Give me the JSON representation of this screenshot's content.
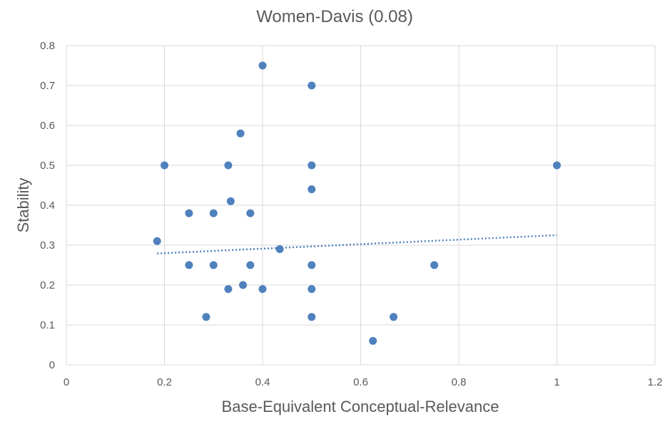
{
  "chart_data": {
    "type": "scatter",
    "title": "Women-Davis (0.08)",
    "xlabel": "Base-Equivalent Conceptual-Relevance",
    "ylabel": "Stability",
    "xlim": [
      0,
      1.2
    ],
    "ylim": [
      0,
      0.8
    ],
    "x_ticks": [
      "0",
      "0.2",
      "0.4",
      "0.6",
      "0.8",
      "1",
      "1.2"
    ],
    "y_ticks": [
      "0",
      "0.1",
      "0.2",
      "0.3",
      "0.4",
      "0.5",
      "0.6",
      "0.7",
      "0.8"
    ],
    "grid": true,
    "legend": "none",
    "marker_color": "#4f81bd",
    "trendline_color": "#4f81bd",
    "points": [
      {
        "x": 0.185,
        "y": 0.31
      },
      {
        "x": 0.2,
        "y": 0.5
      },
      {
        "x": 0.25,
        "y": 0.38
      },
      {
        "x": 0.25,
        "y": 0.25
      },
      {
        "x": 0.285,
        "y": 0.12
      },
      {
        "x": 0.3,
        "y": 0.38
      },
      {
        "x": 0.3,
        "y": 0.25
      },
      {
        "x": 0.33,
        "y": 0.5
      },
      {
        "x": 0.33,
        "y": 0.19
      },
      {
        "x": 0.335,
        "y": 0.41
      },
      {
        "x": 0.355,
        "y": 0.58
      },
      {
        "x": 0.36,
        "y": 0.2
      },
      {
        "x": 0.375,
        "y": 0.38
      },
      {
        "x": 0.375,
        "y": 0.25
      },
      {
        "x": 0.4,
        "y": 0.75
      },
      {
        "x": 0.4,
        "y": 0.19
      },
      {
        "x": 0.435,
        "y": 0.29
      },
      {
        "x": 0.5,
        "y": 0.7
      },
      {
        "x": 0.5,
        "y": 0.5
      },
      {
        "x": 0.5,
        "y": 0.44
      },
      {
        "x": 0.5,
        "y": 0.25
      },
      {
        "x": 0.5,
        "y": 0.19
      },
      {
        "x": 0.5,
        "y": 0.12
      },
      {
        "x": 0.625,
        "y": 0.06
      },
      {
        "x": 0.667,
        "y": 0.12
      },
      {
        "x": 0.75,
        "y": 0.25
      },
      {
        "x": 1.0,
        "y": 0.5
      }
    ],
    "trendline": {
      "x": [
        0.185,
        1.0
      ],
      "y": [
        0.279,
        0.325
      ]
    }
  }
}
